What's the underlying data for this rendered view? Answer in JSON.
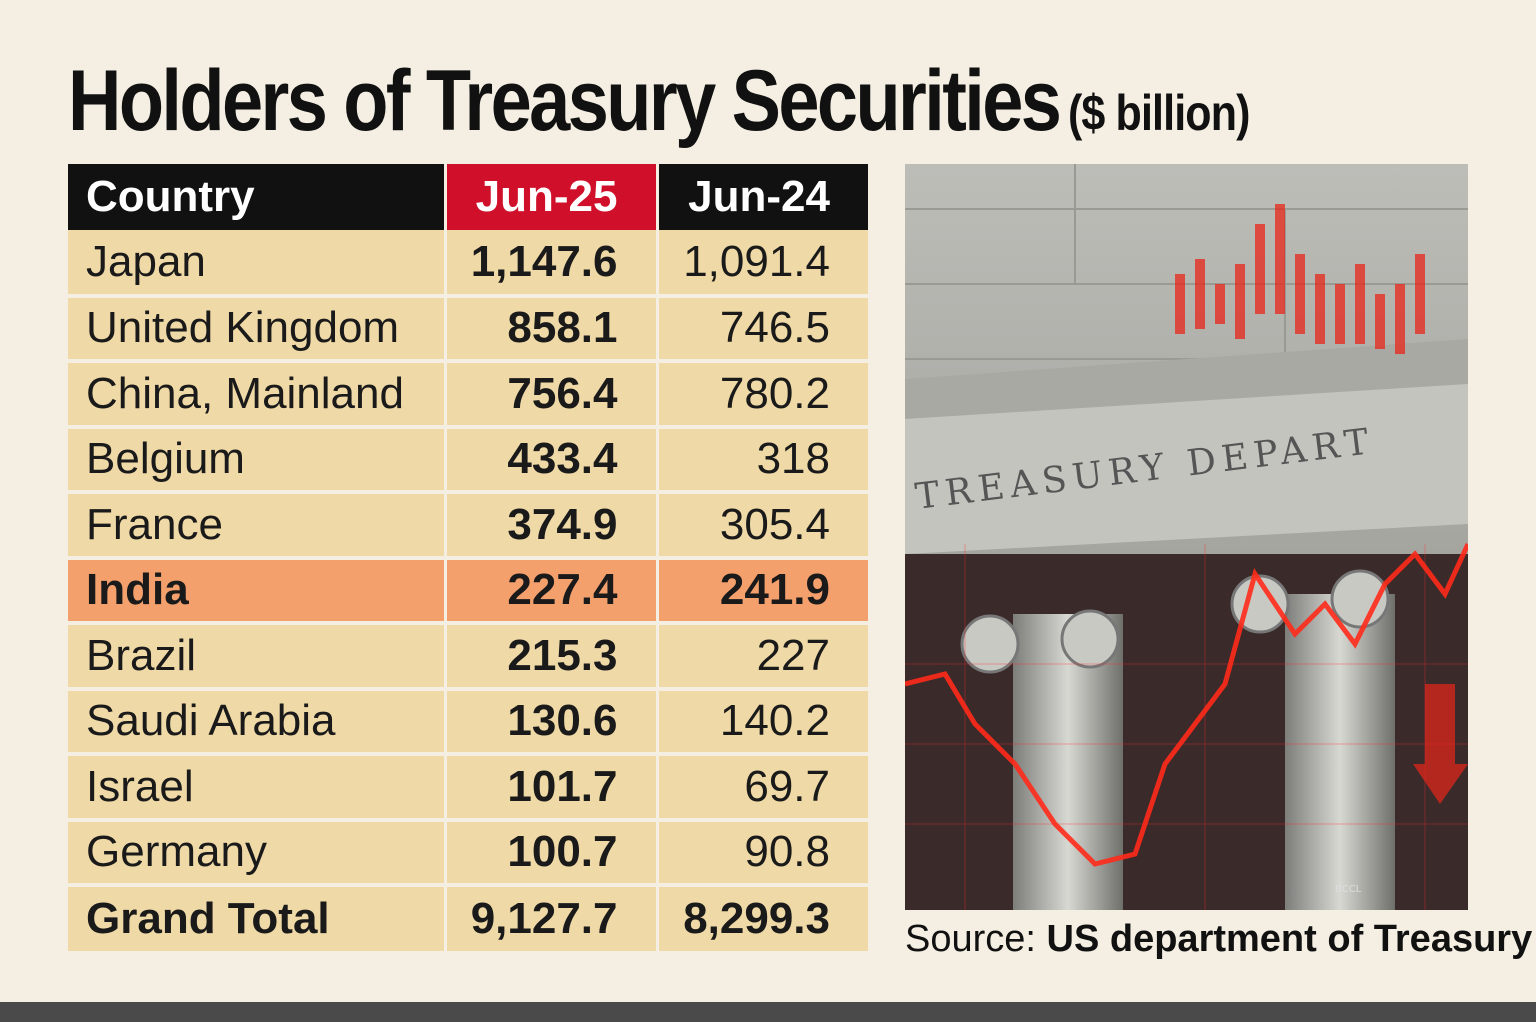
{
  "title": "Holders of Treasury Securities",
  "unit": "($ billion)",
  "table": {
    "headers": [
      "Country",
      "Jun-25",
      "Jun-24"
    ],
    "rows": [
      {
        "country": "Japan",
        "jun25": "1,147.6",
        "jun24": "1,091.4"
      },
      {
        "country": "United Kingdom",
        "jun25": "858.1",
        "jun24": "746.5"
      },
      {
        "country": "China, Mainland",
        "jun25": "756.4",
        "jun24": "780.2"
      },
      {
        "country": "Belgium",
        "jun25": "433.4",
        "jun24": "318"
      },
      {
        "country": "France",
        "jun25": "374.9",
        "jun24": "305.4"
      },
      {
        "country": "India",
        "jun25": "227.4",
        "jun24": "241.9"
      },
      {
        "country": "Brazil",
        "jun25": "215.3",
        "jun24": "227"
      },
      {
        "country": "Saudi Arabia",
        "jun25": "130.6",
        "jun24": "140.2"
      },
      {
        "country": "Israel",
        "jun25": "101.7",
        "jun24": "69.7"
      },
      {
        "country": "Germany",
        "jun25": "100.7",
        "jun24": "90.8"
      }
    ],
    "total": {
      "label": "Grand Total",
      "jun25": "9,127.7",
      "jun24": "8,299.3"
    }
  },
  "photo": {
    "inscription": "TREASURY DEPART",
    "credit": "BCCL"
  },
  "source": {
    "label": "Source:",
    "org": "US department of Treasury"
  },
  "colors": {
    "background": "#f4efe2",
    "header": "#111111",
    "highlight_header": "#d0102a",
    "row": "#efd9a6",
    "india_row": "#f4a06c"
  },
  "chart_data": {
    "type": "table",
    "title": "Holders of Treasury Securities",
    "unit": "$ billion",
    "columns": [
      "Country",
      "Jun-25",
      "Jun-24"
    ],
    "categories": [
      "Japan",
      "United Kingdom",
      "China, Mainland",
      "Belgium",
      "France",
      "India",
      "Brazil",
      "Saudi Arabia",
      "Israel",
      "Germany",
      "Grand Total"
    ],
    "series": [
      {
        "name": "Jun-25",
        "values": [
          1147.6,
          858.1,
          756.4,
          433.4,
          374.9,
          227.4,
          215.3,
          130.6,
          101.7,
          100.7,
          9127.7
        ]
      },
      {
        "name": "Jun-24",
        "values": [
          1091.4,
          746.5,
          780.2,
          318,
          305.4,
          241.9,
          227,
          140.2,
          69.7,
          90.8,
          8299.3
        ]
      }
    ],
    "highlight": "India"
  }
}
